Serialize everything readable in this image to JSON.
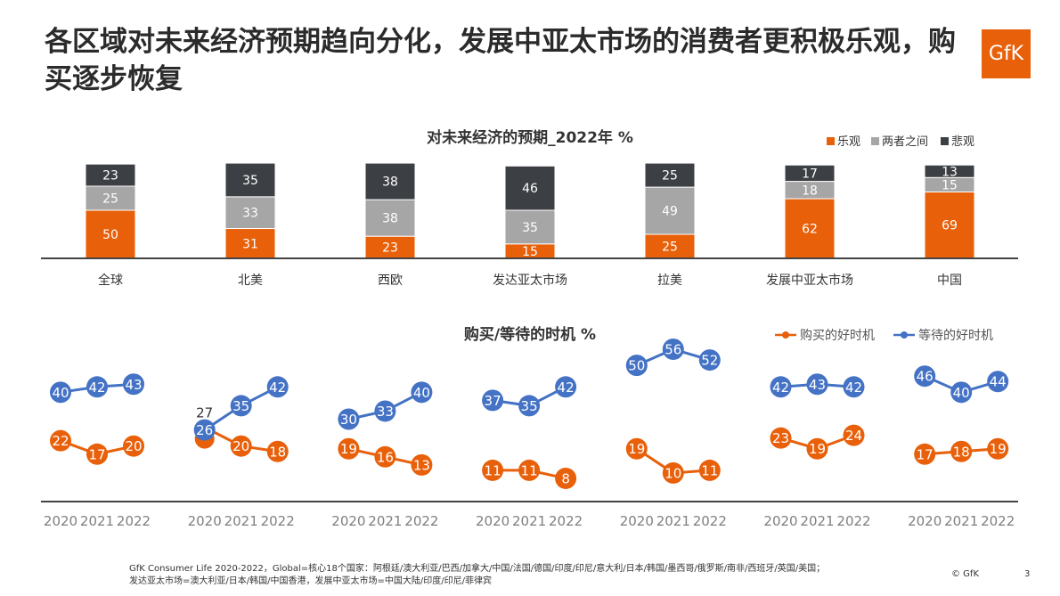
{
  "title": "各区域对未来经济预期趋向分化，发展中亚太市场的消费者更积极乐观，购买逐步恢复",
  "logo": "GfK",
  "colors": {
    "optimistic": "#e8600a",
    "neutral": "#a6a6a6",
    "pessimistic": "#3c3f43",
    "buy": "#e8600a",
    "wait": "#4472c4"
  },
  "chart_data": [
    {
      "type": "bar",
      "stacked": true,
      "title": "对未来经济的预期_2022年 %",
      "legend_position": "top-right",
      "categories": [
        "全球",
        "北美",
        "西欧",
        "发达亚太市场",
        "拉美",
        "发展中亚太市场",
        "中国"
      ],
      "series": [
        {
          "name": "乐观",
          "values": [
            50,
            31,
            23,
            15,
            25,
            62,
            69
          ]
        },
        {
          "name": "两者之间",
          "values": [
            25,
            33,
            38,
            35,
            49,
            18,
            15
          ]
        },
        {
          "name": "悲观",
          "values": [
            23,
            35,
            38,
            46,
            25,
            17,
            13
          ]
        }
      ]
    },
    {
      "type": "line",
      "title": "购买/等待的时机 %",
      "legend_position": "top-right",
      "x": [
        "2020",
        "2021",
        "2022"
      ],
      "groups": [
        "全球",
        "北美",
        "西欧",
        "发达亚太市场",
        "拉美",
        "发展中亚太市场",
        "中国"
      ],
      "series": [
        {
          "name": "购买的好时机",
          "values": [
            [
              22,
              17,
              20
            ],
            [
              27,
              20,
              18
            ],
            [
              19,
              16,
              13
            ],
            [
              11,
              11,
              8
            ],
            [
              19,
              10,
              11
            ],
            [
              23,
              19,
              24
            ],
            [
              17,
              18,
              19
            ]
          ]
        },
        {
          "name": "等待的好时机",
          "values": [
            [
              40,
              42,
              43
            ],
            [
              26,
              35,
              42
            ],
            [
              30,
              33,
              40
            ],
            [
              37,
              35,
              42
            ],
            [
              50,
              56,
              52
            ],
            [
              42,
              43,
              42
            ],
            [
              46,
              40,
              44
            ]
          ]
        }
      ]
    }
  ],
  "footer": {
    "line1": "GfK Consumer Life 2020-2022，Global=核心18个国家：阿根廷/澳大利亚/巴西/加拿大/中国/法国/德国/印度/印尼/意大利/日本/韩国/墨西哥/俄罗斯/南非/西班牙/英国/美国；",
    "line2": "发达亚太市场=澳大利亚/日本/韩国/中国香港，发展中亚太市场=中国大陆/印度/印尼/菲律宾",
    "copyright": "© GfK",
    "page": "3"
  }
}
